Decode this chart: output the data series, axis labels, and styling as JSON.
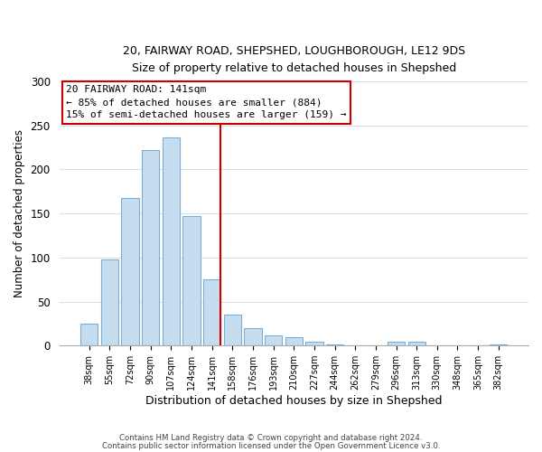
{
  "title1": "20, FAIRWAY ROAD, SHEPSHED, LOUGHBOROUGH, LE12 9DS",
  "title2": "Size of property relative to detached houses in Shepshed",
  "xlabel": "Distribution of detached houses by size in Shepshed",
  "ylabel": "Number of detached properties",
  "bar_labels": [
    "38sqm",
    "55sqm",
    "72sqm",
    "90sqm",
    "107sqm",
    "124sqm",
    "141sqm",
    "158sqm",
    "176sqm",
    "193sqm",
    "210sqm",
    "227sqm",
    "244sqm",
    "262sqm",
    "279sqm",
    "296sqm",
    "313sqm",
    "330sqm",
    "348sqm",
    "365sqm",
    "382sqm"
  ],
  "bar_heights": [
    25,
    98,
    168,
    222,
    236,
    147,
    75,
    35,
    20,
    12,
    9,
    4,
    1,
    0,
    0,
    4,
    4,
    0,
    0,
    0,
    1
  ],
  "bar_color": "#c6ddf0",
  "bar_edge_color": "#7aaed6",
  "highlight_index": 6,
  "highlight_line_color": "#cc0000",
  "ylim": [
    0,
    300
  ],
  "yticks": [
    0,
    50,
    100,
    150,
    200,
    250,
    300
  ],
  "annotation_title": "20 FAIRWAY ROAD: 141sqm",
  "annotation_line1": "← 85% of detached houses are smaller (884)",
  "annotation_line2": "15% of semi-detached houses are larger (159) →",
  "footer1": "Contains HM Land Registry data © Crown copyright and database right 2024.",
  "footer2": "Contains public sector information licensed under the Open Government Licence v3.0."
}
